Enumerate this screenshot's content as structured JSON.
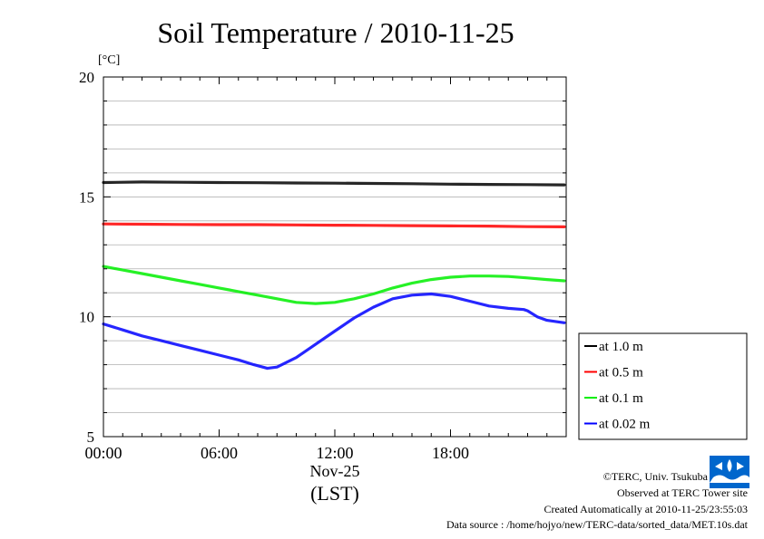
{
  "chart_data": {
    "type": "line",
    "title": "Soil Temperature / 2010-11-25",
    "unit_label": "[°C]",
    "ylim": [
      5,
      20
    ],
    "y_ticks": [
      5,
      10,
      15,
      20
    ],
    "y_minor_step": 1,
    "xlim": [
      0,
      24
    ],
    "x_ticks": [
      {
        "value": 0,
        "label": "00:00"
      },
      {
        "value": 6,
        "label": "06:00"
      },
      {
        "value": 12,
        "label": "12:00"
      },
      {
        "value": 18,
        "label": "18:00"
      }
    ],
    "x_sublabel": "Nov-25",
    "x_unit": "(LST)",
    "grid": true,
    "legend_position": "right, outside plot, lower",
    "series": [
      {
        "name": "at 1.0 m",
        "color": "#000000",
        "x": [
          0,
          2,
          4,
          6,
          8,
          10,
          12,
          14,
          16,
          18,
          20,
          22,
          23.9
        ],
        "y": [
          15.6,
          15.62,
          15.61,
          15.6,
          15.59,
          15.58,
          15.57,
          15.56,
          15.55,
          15.53,
          15.52,
          15.51,
          15.5
        ]
      },
      {
        "name": "at 0.5 m",
        "color": "#ff0000",
        "x": [
          0,
          2,
          4,
          6,
          8,
          10,
          12,
          14,
          16,
          18,
          20,
          22,
          23.9
        ],
        "y": [
          13.87,
          13.86,
          13.85,
          13.84,
          13.84,
          13.83,
          13.82,
          13.81,
          13.8,
          13.79,
          13.78,
          13.76,
          13.75
        ]
      },
      {
        "name": "at 0.1 m",
        "color": "#00ee00",
        "x": [
          0,
          1,
          2,
          3,
          4,
          5,
          6,
          7,
          8,
          9,
          10,
          11,
          12,
          13,
          14,
          15,
          16,
          17,
          18,
          19,
          20,
          21,
          22,
          23,
          23.9
        ],
        "y": [
          12.1,
          11.95,
          11.8,
          11.65,
          11.5,
          11.35,
          11.2,
          11.05,
          10.9,
          10.75,
          10.6,
          10.55,
          10.6,
          10.75,
          10.95,
          11.2,
          11.4,
          11.55,
          11.65,
          11.7,
          11.7,
          11.68,
          11.62,
          11.55,
          11.5
        ]
      },
      {
        "name": "at 0.02 m",
        "color": "#0000ff",
        "x": [
          0,
          1,
          2,
          3,
          4,
          5,
          6,
          7,
          7.8,
          8.5,
          9,
          10,
          11,
          12,
          13,
          14,
          15,
          16,
          17,
          18,
          19,
          20,
          21,
          21.8,
          22,
          22.5,
          23,
          23.9
        ],
        "y": [
          9.7,
          9.45,
          9.2,
          9.0,
          8.8,
          8.6,
          8.4,
          8.2,
          8.0,
          7.85,
          7.9,
          8.3,
          8.85,
          9.4,
          9.95,
          10.4,
          10.75,
          10.9,
          10.95,
          10.85,
          10.65,
          10.45,
          10.35,
          10.3,
          10.25,
          10.0,
          9.85,
          9.75
        ]
      }
    ]
  },
  "footer": {
    "copyright": "©TERC, Univ. Tsukuba",
    "observed": "Observed at TERC Tower site",
    "created": "Created Automatically at 2010-11-25/23:55:03",
    "source": "Data source : /home/hojyo/new/TERC-data/sorted_data/MET.10s.dat"
  },
  "logo": {
    "text": "TERC",
    "color": "#0066cc"
  }
}
